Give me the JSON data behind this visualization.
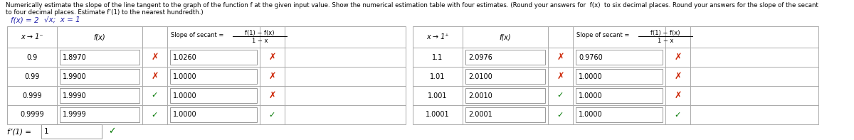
{
  "title_line1": "Numerically estimate the slope of the line tangent to the graph of the function f at the given input value. Show the numerical estimation table with four estimates. (Round your answers for  f(x)  to six decimal places. Round your answers for the slope of the secant",
  "title_line2": "to four decimal places. Estimate f’(1) to the nearest hundredth.)",
  "func_label": "f(x) = 2√x;  x = 1",
  "left_x": [
    "0.9",
    "0.99",
    "0.999",
    "0.9999"
  ],
  "left_fx": [
    "1.8970",
    "1.9900",
    "1.9990",
    "1.9999"
  ],
  "left_slope": [
    "1.0260",
    "1.0000",
    "1.0000",
    "1.0000"
  ],
  "left_fx_check": [
    false,
    false,
    true,
    true
  ],
  "left_slope_check": [
    false,
    false,
    false,
    true
  ],
  "right_x": [
    "1.1",
    "1.01",
    "1.001",
    "1.0001"
  ],
  "right_fx": [
    "2.0976",
    "2.0100",
    "2.0010",
    "2.0001"
  ],
  "right_slope": [
    "0.9760",
    "1.0000",
    "1.0000",
    "1.0000"
  ],
  "right_fx_check": [
    false,
    false,
    true,
    true
  ],
  "right_slope_check": [
    false,
    false,
    false,
    true
  ],
  "fp_answer": "1",
  "bg_color": "#ffffff",
  "text_color": "#000000",
  "blue_color": "#2222aa",
  "red_x_color": "#cc2200",
  "green_check_color": "#007700",
  "table_border_color": "#aaaaaa",
  "header_arrow_left": "x → 1⁻",
  "header_arrow_right": "x → 1⁺",
  "header_fx": "f(x)",
  "header_slope_pre": "Slope of secant = ",
  "header_slope_num": "f(1) − f(x)",
  "header_slope_den": "1 − x",
  "fp_label": "f’(1) = "
}
